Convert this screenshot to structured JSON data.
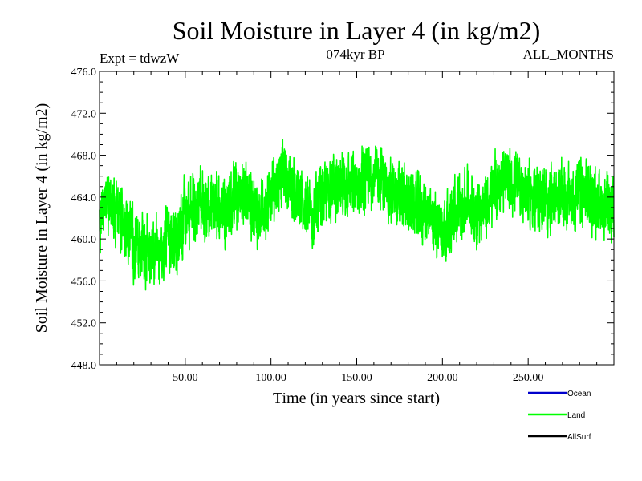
{
  "chart_data": {
    "type": "line",
    "title": "Soil Moisture in Layer 4 (in kg/m2)",
    "experiment_label": "Expt = tdwzW",
    "period_label": "074kyr BP",
    "months_label": "ALL_MONTHS",
    "xlabel": "Time (in years since start)",
    "ylabel": "Soil Moisture in Layer 4 (in kg/m2)",
    "xlim": [
      0,
      300
    ],
    "ylim": [
      448.0,
      476.0
    ],
    "x_ticks": [
      50,
      100,
      150,
      200,
      250
    ],
    "x_tick_labels": [
      "50.00",
      "100.00",
      "150.00",
      "200.00",
      "250.00"
    ],
    "y_ticks": [
      448,
      452,
      456,
      460,
      464,
      468,
      472,
      476
    ],
    "y_tick_labels": [
      "448.0",
      "452.0",
      "456.0",
      "460.0",
      "464.0",
      "468.0",
      "472.0",
      "476.0"
    ],
    "grid": false,
    "legend_position": "bottom-right",
    "series": [
      {
        "name": "Ocean",
        "color": "#0000cc",
        "x": [],
        "y": []
      },
      {
        "name": "Land",
        "color": "#00ff00",
        "x": [
          0,
          5,
          10,
          15,
          20,
          25,
          30,
          35,
          40,
          45,
          50,
          55,
          60,
          65,
          70,
          75,
          80,
          85,
          90,
          95,
          100,
          105,
          110,
          115,
          120,
          125,
          130,
          135,
          140,
          145,
          150,
          155,
          160,
          165,
          170,
          175,
          180,
          185,
          190,
          195,
          200,
          205,
          210,
          215,
          220,
          225,
          230,
          235,
          240,
          245,
          250,
          255,
          260,
          265,
          270,
          275,
          280,
          285,
          290,
          295,
          300
        ],
        "y": [
          461.0,
          463.5,
          462.5,
          461.0,
          460.0,
          459.0,
          458.5,
          459.0,
          460.0,
          459.5,
          462.0,
          463.0,
          463.5,
          462.5,
          463.0,
          463.5,
          464.0,
          464.5,
          463.0,
          462.5,
          464.0,
          466.5,
          465.5,
          464.0,
          463.0,
          462.5,
          464.0,
          465.0,
          464.5,
          465.0,
          464.5,
          465.5,
          466.5,
          465.5,
          464.5,
          464.0,
          463.5,
          463.0,
          462.5,
          461.5,
          461.0,
          461.5,
          463.0,
          463.5,
          462.5,
          463.0,
          464.5,
          466.0,
          465.5,
          465.0,
          464.5,
          464.0,
          463.5,
          464.0,
          464.5,
          463.5,
          464.5,
          464.0,
          463.5,
          463.0,
          462.0
        ]
      },
      {
        "name": "AllSurf",
        "color": "#000000",
        "x": [],
        "y": []
      }
    ]
  }
}
